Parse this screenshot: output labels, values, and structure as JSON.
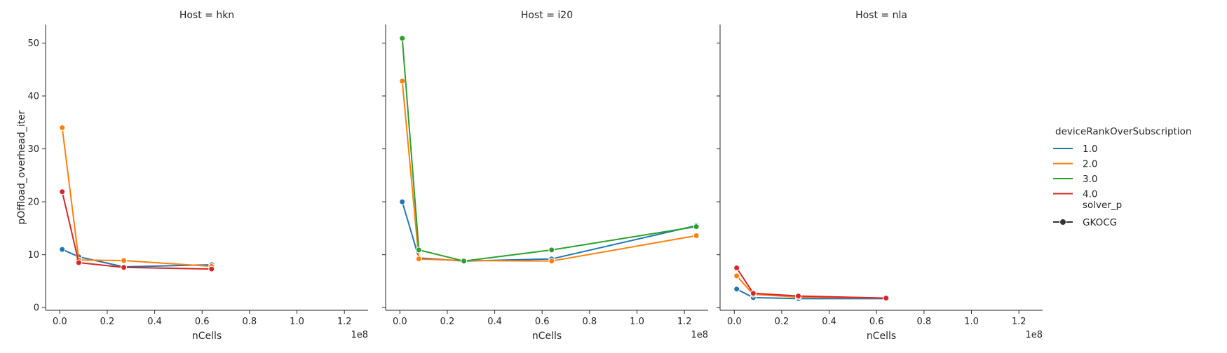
{
  "chart_data": {
    "type": "line",
    "ylabel": "pOffload_overhead_iter",
    "xlabel": "nCells",
    "x_offset_text": "1e8",
    "xlim": [
      -0.06,
      1.3
    ],
    "ylim": [
      -0.5,
      53.5
    ],
    "x_ticks": [
      0.0,
      0.2,
      0.4,
      0.6,
      0.8,
      1.0,
      1.2
    ],
    "x_tick_labels": [
      "0.0",
      "0.2",
      "0.4",
      "0.6",
      "0.8",
      "1.0",
      "1.2"
    ],
    "y_ticks": [
      0,
      10,
      20,
      30,
      40,
      50
    ],
    "y_tick_labels": [
      "0",
      "10",
      "20",
      "30",
      "40",
      "50"
    ],
    "legend": {
      "placement": "right",
      "hue_title": "deviceRankOverSubscription",
      "hue_entries": [
        {
          "label": "1.0",
          "color": "#1f77b4"
        },
        {
          "label": "2.0",
          "color": "#ff7f0e"
        },
        {
          "label": "3.0",
          "color": "#2ca02c"
        },
        {
          "label": "4.0",
          "color": "#d62728"
        }
      ],
      "style_title": "solver_p",
      "style_entries": [
        {
          "label": "GKOCG",
          "color": "#333333"
        }
      ]
    },
    "panels": [
      {
        "title": "Host = hkn",
        "series": [
          {
            "name": "1.0",
            "color": "#1f77b4",
            "x": [
              0.01,
              0.08,
              0.27,
              0.64
            ],
            "y": [
              11.0,
              9.6,
              7.7,
              8.1
            ]
          },
          {
            "name": "2.0",
            "color": "#ff7f0e",
            "x": [
              0.01,
              0.08,
              0.27,
              0.64
            ],
            "y": [
              34.0,
              9.0,
              8.9,
              7.8
            ]
          },
          {
            "name": "4.0",
            "color": "#d62728",
            "x": [
              0.01,
              0.08,
              0.27,
              0.64
            ],
            "y": [
              21.9,
              8.5,
              7.6,
              7.3
            ]
          }
        ]
      },
      {
        "title": "Host = i20",
        "series": [
          {
            "name": "1.0",
            "color": "#1f77b4",
            "x": [
              0.01,
              0.08,
              0.27,
              0.64,
              1.25
            ],
            "y": [
              20.0,
              9.4,
              8.8,
              9.2,
              15.5
            ]
          },
          {
            "name": "2.0",
            "color": "#ff7f0e",
            "x": [
              0.01,
              0.08,
              0.27,
              0.64,
              1.25
            ],
            "y": [
              42.8,
              9.2,
              8.9,
              8.8,
              13.6
            ]
          },
          {
            "name": "3.0",
            "color": "#2ca02c",
            "x": [
              0.01,
              0.08,
              0.27,
              0.64,
              1.25
            ],
            "y": [
              50.9,
              10.9,
              8.8,
              10.9,
              15.3
            ]
          }
        ]
      },
      {
        "title": "Host = nla",
        "series": [
          {
            "name": "1.0",
            "color": "#1f77b4",
            "x": [
              0.01,
              0.08,
              0.27,
              0.64
            ],
            "y": [
              3.5,
              1.9,
              1.7,
              1.7
            ]
          },
          {
            "name": "2.0",
            "color": "#ff7f0e",
            "x": [
              0.01,
              0.08,
              0.27,
              0.64
            ],
            "y": [
              6.0,
              2.5,
              2.0,
              1.8
            ]
          },
          {
            "name": "4.0",
            "color": "#d62728",
            "x": [
              0.01,
              0.08,
              0.27,
              0.64
            ],
            "y": [
              7.5,
              2.7,
              2.2,
              1.8
            ]
          }
        ]
      }
    ]
  }
}
